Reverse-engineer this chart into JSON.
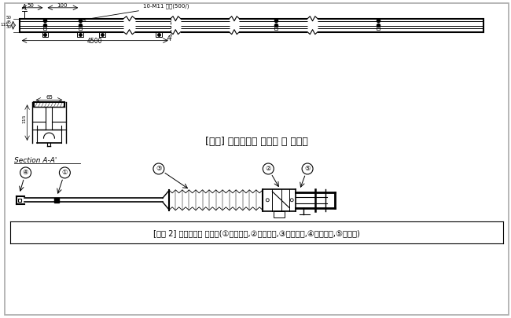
{
  "bg_color": "#ffffff",
  "border_color": "#000000",
  "title1": "[그림] 강체전차선 평면도 및 단면도",
  "title2": "[그림 2] 강체전차선 브래킷(①머리금구,②꼬리금구,③장간애자,④접지걸이,⑤힌지핀)",
  "section_label": "Section A-A'",
  "annotation_top": "10-M11 볼트(500/)",
  "dim_50": "50",
  "dim_100": "100",
  "dim_4500": "4500",
  "dim_65": "65",
  "dim_115": "115"
}
